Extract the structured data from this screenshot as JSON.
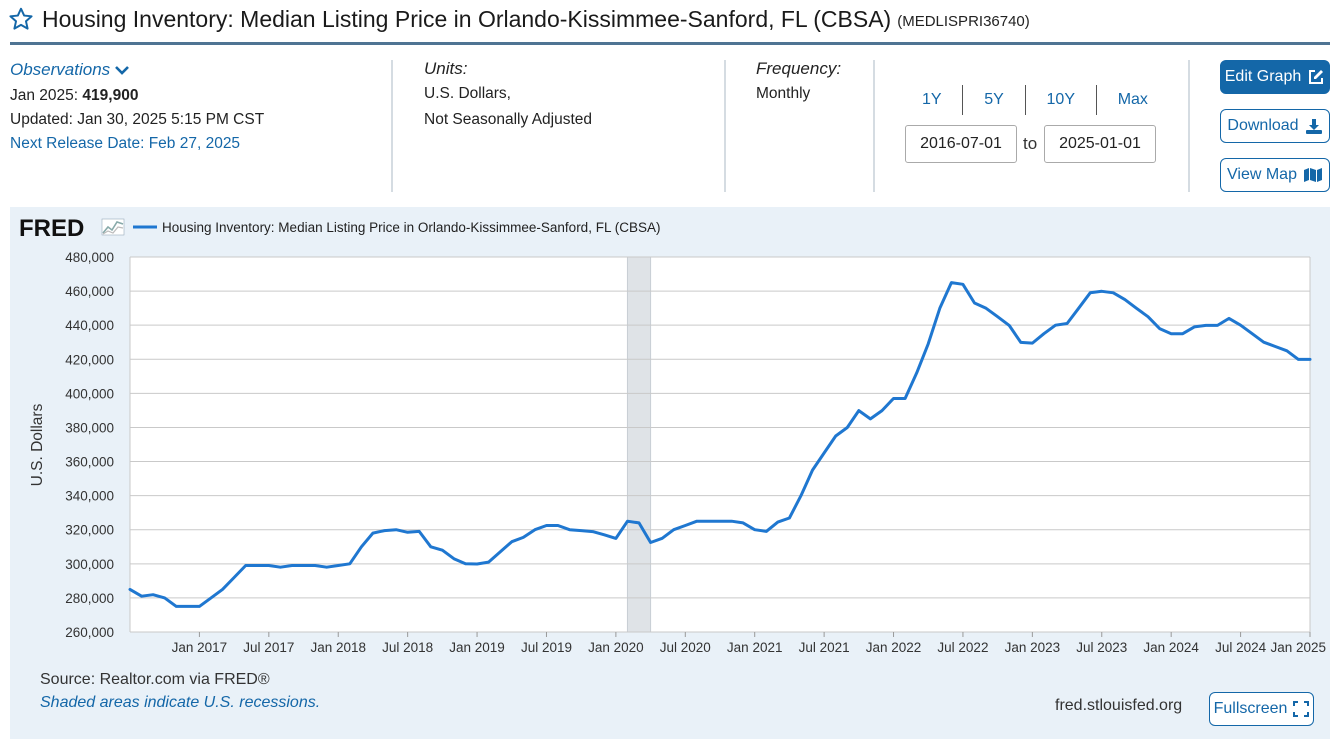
{
  "header": {
    "title": "Housing Inventory: Median Listing Price in Orlando-Kissimmee-Sanford, FL (CBSA)",
    "series_id": "(MEDLISPRI36740)"
  },
  "observations": {
    "link_label": "Observations",
    "latest_date": "Jan 2025:",
    "latest_value": "419,900",
    "updated": "Updated: Jan 30, 2025 5:15 PM CST",
    "next_release": "Next Release Date: Feb 27, 2025"
  },
  "units": {
    "label": "Units:",
    "line1": "U.S. Dollars,",
    "line2": "Not Seasonally Adjusted"
  },
  "frequency": {
    "label": "Frequency:",
    "value": "Monthly"
  },
  "range": {
    "buttons": [
      "1Y",
      "5Y",
      "10Y",
      "Max"
    ],
    "start": "2016-07-01",
    "to_label": "to",
    "end": "2025-01-01"
  },
  "actions": {
    "edit_graph": "Edit Graph",
    "download": "Download",
    "view_map": "View Map"
  },
  "footer": {
    "source": "Source: Realtor.com via FRED®",
    "recession_note": "Shaded areas indicate U.S. recessions.",
    "url": "fred.stlouisfed.org",
    "fullscreen": "Fullscreen"
  },
  "colors": {
    "line": "#1f77d0",
    "accent": "#1467a8",
    "panel_bg": "#e9f1f8",
    "recession": "#dfe3e7"
  },
  "chart_data": {
    "type": "line",
    "brand": "FRED",
    "legend": "Housing Inventory: Median Listing Price in Orlando-Kissimmee-Sanford, FL (CBSA)",
    "ylabel": "U.S. Dollars",
    "ylim": [
      260000,
      480000
    ],
    "yticks": [
      260000,
      280000,
      300000,
      320000,
      340000,
      360000,
      380000,
      400000,
      420000,
      440000,
      460000,
      480000
    ],
    "ytick_labels": [
      "260,000",
      "280,000",
      "300,000",
      "320,000",
      "340,000",
      "360,000",
      "380,000",
      "400,000",
      "420,000",
      "440,000",
      "460,000",
      "480,000"
    ],
    "x_start": "2016-07",
    "x_end": "2025-01",
    "xticks": [
      {
        "month": 6,
        "label": "Jan 2017"
      },
      {
        "month": 12,
        "label": "Jul 2017"
      },
      {
        "month": 18,
        "label": "Jan 2018"
      },
      {
        "month": 24,
        "label": "Jul 2018"
      },
      {
        "month": 30,
        "label": "Jan 2019"
      },
      {
        "month": 36,
        "label": "Jul 2019"
      },
      {
        "month": 42,
        "label": "Jan 2020"
      },
      {
        "month": 48,
        "label": "Jul 2020"
      },
      {
        "month": 54,
        "label": "Jan 2021"
      },
      {
        "month": 60,
        "label": "Jul 2021"
      },
      {
        "month": 66,
        "label": "Jan 2022"
      },
      {
        "month": 72,
        "label": "Jul 2022"
      },
      {
        "month": 78,
        "label": "Jan 2023"
      },
      {
        "month": 84,
        "label": "Jul 2023"
      },
      {
        "month": 90,
        "label": "Jan 2024"
      },
      {
        "month": 96,
        "label": "Jul 2024"
      },
      {
        "month": 102,
        "label": "Jan 2025"
      }
    ],
    "recessions": [
      {
        "start": "2020-02",
        "end": "2020-04"
      }
    ],
    "series": [
      {
        "name": "MEDLISPRI36740",
        "values": [
          285000,
          281000,
          281900,
          280000,
          275000,
          275000,
          275000,
          280000,
          285000,
          292000,
          299000,
          299000,
          299000,
          298000,
          299000,
          299000,
          299000,
          298000,
          299000,
          300000,
          310000,
          318000,
          319500,
          320000,
          318500,
          319000,
          310000,
          308000,
          303000,
          300000,
          299900,
          301000,
          307000,
          313000,
          315500,
          320000,
          322500,
          322500,
          320000,
          319500,
          318900,
          317000,
          314900,
          325000,
          324000,
          312500,
          315000,
          320000,
          322500,
          325000,
          325000,
          325000,
          325000,
          324000,
          320000,
          319000,
          324500,
          326900,
          340000,
          355000,
          365000,
          375000,
          380000,
          389900,
          385000,
          389900,
          397000,
          397000,
          412000,
          429000,
          449900,
          465000,
          464000,
          453000,
          449900,
          445000,
          439900,
          429900,
          429500,
          435000,
          440000,
          441000,
          449900,
          459000,
          459900,
          459000,
          455000,
          449900,
          445000,
          438000,
          435000,
          435000,
          439000,
          439900,
          439900,
          444000,
          440000,
          435000,
          430000,
          427500,
          425000,
          419900,
          419900
        ]
      }
    ]
  }
}
